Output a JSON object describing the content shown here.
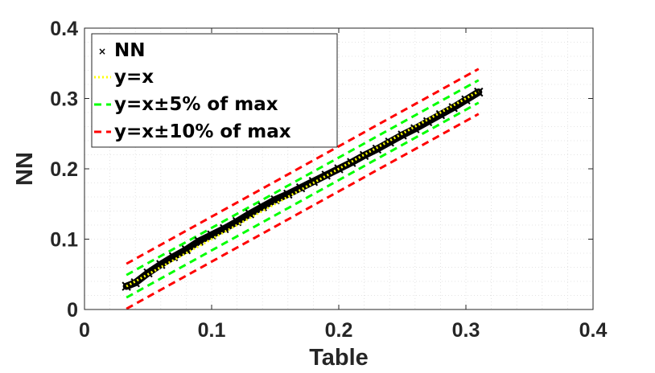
{
  "chart_data": {
    "type": "scatter",
    "xlabel": "Table",
    "ylabel": "NN",
    "xlim": [
      0,
      0.4
    ],
    "ylim": [
      0,
      0.4
    ],
    "xticks": [
      "0",
      "0.1",
      "0.2",
      "0.3",
      "0.4"
    ],
    "yticks": [
      "0",
      "0.1",
      "0.2",
      "0.3",
      "0.4"
    ],
    "grid": "minor dotted",
    "legend_position": "top-left",
    "series": [
      {
        "name": "NN",
        "style": "black x markers",
        "color": "#000000",
        "points": [
          [
            0.033,
            0.033
          ],
          [
            0.04,
            0.038
          ],
          [
            0.05,
            0.052
          ],
          [
            0.06,
            0.064
          ],
          [
            0.07,
            0.075
          ],
          [
            0.08,
            0.085
          ],
          [
            0.09,
            0.097
          ],
          [
            0.1,
            0.106
          ],
          [
            0.11,
            0.115
          ],
          [
            0.12,
            0.125
          ],
          [
            0.13,
            0.136
          ],
          [
            0.14,
            0.146
          ],
          [
            0.15,
            0.156
          ],
          [
            0.16,
            0.164
          ],
          [
            0.17,
            0.173
          ],
          [
            0.18,
            0.182
          ],
          [
            0.19,
            0.191
          ],
          [
            0.2,
            0.2
          ],
          [
            0.21,
            0.209
          ],
          [
            0.22,
            0.219
          ],
          [
            0.23,
            0.228
          ],
          [
            0.24,
            0.238
          ],
          [
            0.25,
            0.248
          ],
          [
            0.26,
            0.257
          ],
          [
            0.27,
            0.267
          ],
          [
            0.28,
            0.277
          ],
          [
            0.29,
            0.287
          ],
          [
            0.3,
            0.298
          ],
          [
            0.31,
            0.309
          ]
        ]
      },
      {
        "name": "y=x",
        "style": "dotted",
        "color": "#ffff00",
        "offset": 0
      },
      {
        "name": "y=x±5% of max",
        "style": "dashed",
        "color": "#00ff00",
        "offset": 0.016
      },
      {
        "name": "y=x±10% of max",
        "style": "dashed",
        "color": "#ff0000",
        "offset": 0.032
      }
    ],
    "line_x_range": [
      0.033,
      0.31
    ]
  }
}
